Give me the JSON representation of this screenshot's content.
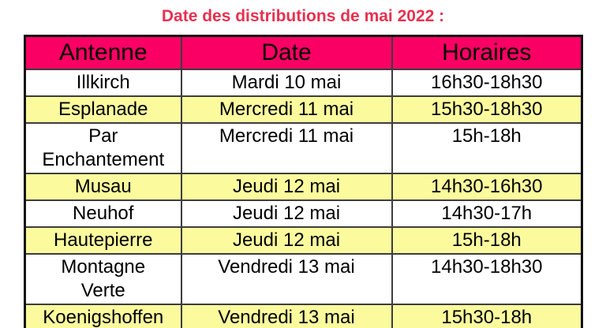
{
  "page": {
    "title": "Date des distributions de mai 2022 :"
  },
  "colors": {
    "title_color": "#e7304f",
    "header_bg": "#fa0064",
    "row_alt_bg": "#fbfb9e",
    "border_inner": "#3d3d3d",
    "border_outer": "#111111",
    "text": "#000000"
  },
  "table": {
    "columns": [
      {
        "label": "Antenne"
      },
      {
        "label": "Date"
      },
      {
        "label": "Horaires"
      }
    ],
    "rows": [
      {
        "antenne": "Illkirch",
        "date": "Mardi 10 mai",
        "horaires": "16h30-18h30",
        "highlight": false
      },
      {
        "antenne": "Esplanade",
        "date": "Mercredi 11 mai",
        "horaires": "15h30-18h30",
        "highlight": true
      },
      {
        "antenne": "Par\nEnchantement",
        "date": "Mercredi 11 mai",
        "horaires": "15h-18h",
        "highlight": false
      },
      {
        "antenne": "Musau",
        "date": "Jeudi 12 mai",
        "horaires": "14h30-16h30",
        "highlight": true
      },
      {
        "antenne": "Neuhof",
        "date": "Jeudi 12 mai",
        "horaires": "14h30-17h",
        "highlight": false
      },
      {
        "antenne": "Hautepierre",
        "date": "Jeudi 12 mai",
        "horaires": "15h-18h",
        "highlight": true
      },
      {
        "antenne": "Montagne\nVerte",
        "date": "Vendredi 13 mai",
        "horaires": "14h30-18h30",
        "highlight": false
      },
      {
        "antenne": "Koenigshoffen",
        "date": "Vendredi 13 mai",
        "horaires": "15h30-18h",
        "highlight": true
      }
    ]
  }
}
